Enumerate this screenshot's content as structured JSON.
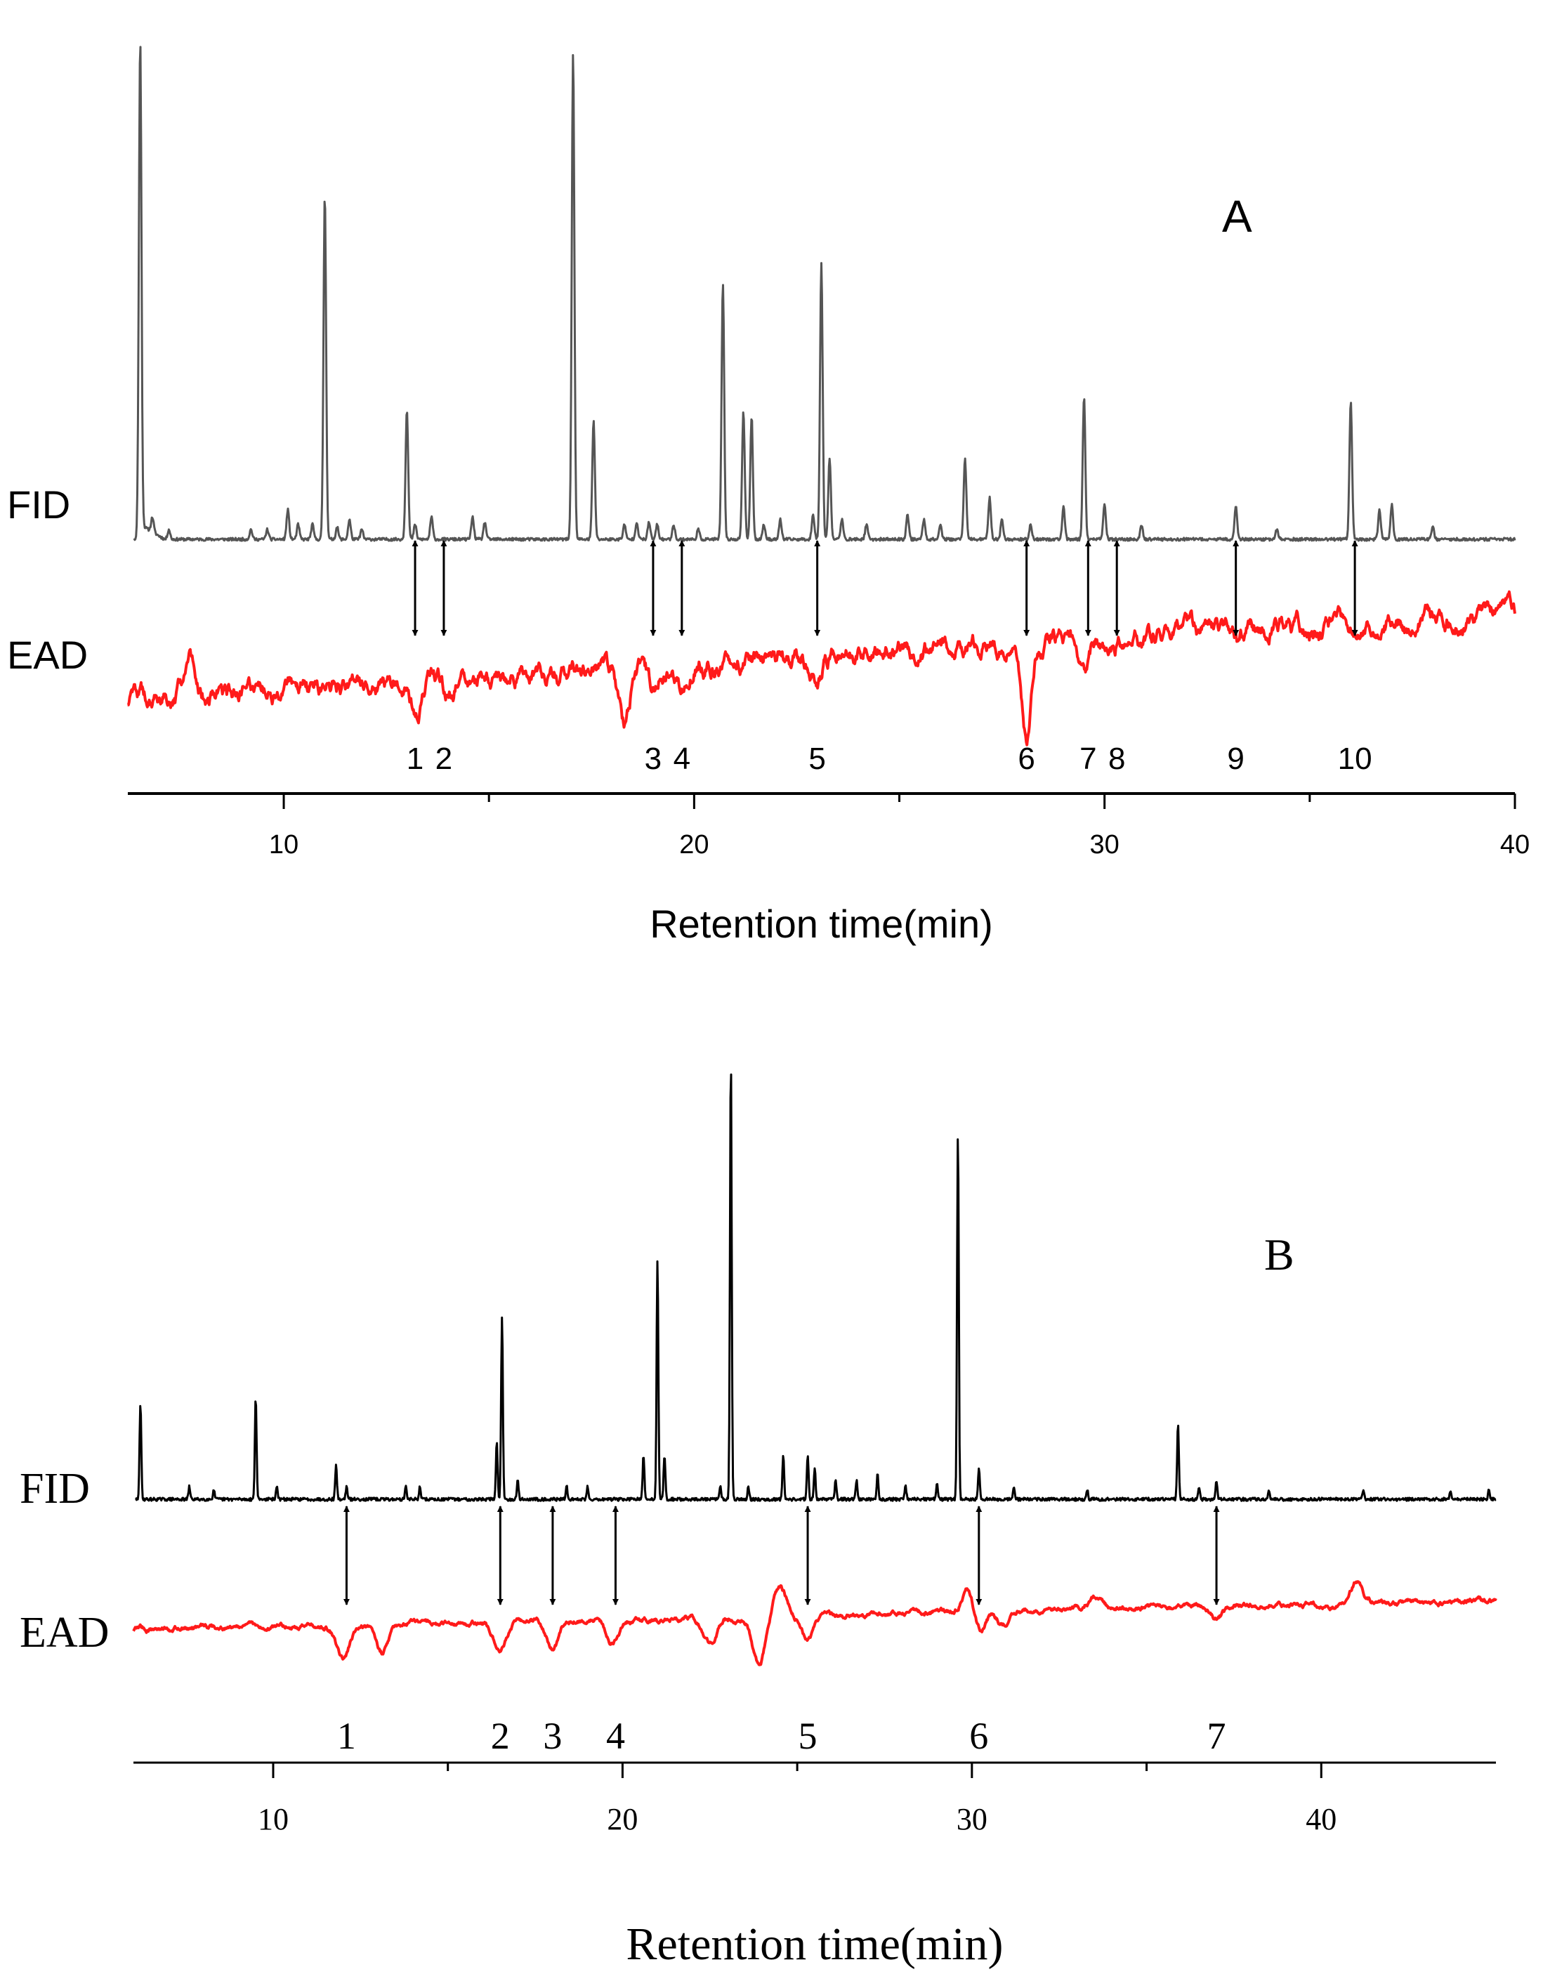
{
  "chart_data": [
    {
      "panel": "A",
      "type": "line",
      "panel_label": "A",
      "xlabel": "Retention time(min)",
      "xlim": [
        6.2,
        40
      ],
      "xticks_major": [
        10,
        20,
        30,
        40
      ],
      "xticks_minor": [
        15,
        25,
        35
      ],
      "series": [
        {
          "name": "FID",
          "color": "#555555",
          "baseline": 0,
          "noise": 0.6,
          "peaks": [
            [
              6.5,
              200
            ],
            [
              6.8,
              6
            ],
            [
              7.2,
              4
            ],
            [
              9.2,
              4
            ],
            [
              9.6,
              4
            ],
            [
              10.1,
              12
            ],
            [
              10.35,
              6
            ],
            [
              10.7,
              6
            ],
            [
              11.0,
              140
            ],
            [
              11.3,
              5
            ],
            [
              11.6,
              8
            ],
            [
              11.9,
              4
            ],
            [
              13.0,
              53
            ],
            [
              13.2,
              6
            ],
            [
              13.6,
              9
            ],
            [
              14.6,
              9
            ],
            [
              14.9,
              7
            ],
            [
              17.05,
              198
            ],
            [
              17.55,
              48
            ],
            [
              18.3,
              6
            ],
            [
              18.6,
              7
            ],
            [
              18.9,
              7
            ],
            [
              19.1,
              6
            ],
            [
              19.5,
              6
            ],
            [
              20.1,
              4
            ],
            [
              20.7,
              104
            ],
            [
              21.2,
              52
            ],
            [
              21.4,
              50
            ],
            [
              21.7,
              6
            ],
            [
              22.1,
              8
            ],
            [
              22.9,
              10
            ],
            [
              23.1,
              112
            ],
            [
              23.3,
              33
            ],
            [
              23.6,
              8
            ],
            [
              24.2,
              6
            ],
            [
              25.2,
              10
            ],
            [
              25.6,
              8
            ],
            [
              26.0,
              6
            ],
            [
              26.6,
              33
            ],
            [
              27.2,
              17
            ],
            [
              27.5,
              8
            ],
            [
              28.2,
              6
            ],
            [
              29.0,
              13
            ],
            [
              29.5,
              58
            ],
            [
              30.0,
              14
            ],
            [
              30.9,
              6
            ],
            [
              33.2,
              14
            ],
            [
              34.2,
              4
            ],
            [
              36.0,
              56
            ],
            [
              36.7,
              12
            ],
            [
              37.0,
              14
            ],
            [
              38.0,
              5
            ]
          ]
        },
        {
          "name": "EAD",
          "color": "#ff1a1a",
          "baseline": 0,
          "noise": 4,
          "peaks": [
            [
              7.7,
              20
            ],
            [
              13.2,
              -14
            ],
            [
              13.9,
              -5
            ],
            [
              18.3,
              -22
            ],
            [
              19.0,
              -9
            ],
            [
              19.7,
              -9
            ],
            [
              23.0,
              -7
            ],
            [
              28.1,
              -40
            ],
            [
              29.5,
              -9
            ],
            [
              30.1,
              -5
            ],
            [
              33.2,
              -3
            ],
            [
              36.1,
              -3
            ],
            [
              37.5,
              -7
            ]
          ]
        }
      ],
      "peak_labels": [
        {
          "label": "1",
          "x": 13.2
        },
        {
          "label": "2",
          "x": 13.9
        },
        {
          "label": "3",
          "x": 19.0
        },
        {
          "label": "4",
          "x": 19.7
        },
        {
          "label": "5",
          "x": 23.0
        },
        {
          "label": "6",
          "x": 28.1
        },
        {
          "label": "7",
          "x": 29.6
        },
        {
          "label": "8",
          "x": 30.3
        },
        {
          "label": "9",
          "x": 33.2
        },
        {
          "label": "10",
          "x": 36.1
        }
      ],
      "trace_labels": [
        "FID",
        "EAD"
      ],
      "trace_label_font": "sans"
    },
    {
      "panel": "B",
      "type": "line",
      "panel_label": "B",
      "xlabel": "Retention time(min)",
      "xlim": [
        6,
        45
      ],
      "xticks_major": [
        10,
        20,
        30,
        40
      ],
      "xticks_minor": [
        15,
        25,
        35
      ],
      "series": [
        {
          "name": "FID",
          "color": "#000000",
          "baseline": 0,
          "noise": 0.5,
          "peaks": [
            [
              6.2,
              30
            ],
            [
              7.6,
              4
            ],
            [
              8.3,
              3
            ],
            [
              9.5,
              32
            ],
            [
              10.1,
              4
            ],
            [
              11.8,
              11
            ],
            [
              12.1,
              4
            ],
            [
              13.8,
              4
            ],
            [
              14.2,
              4
            ],
            [
              16.4,
              18
            ],
            [
              16.55,
              58
            ],
            [
              17.0,
              6
            ],
            [
              18.4,
              4
            ],
            [
              19.0,
              4
            ],
            [
              20.6,
              14
            ],
            [
              21.0,
              76
            ],
            [
              21.2,
              14
            ],
            [
              22.8,
              4
            ],
            [
              23.1,
              140
            ],
            [
              23.6,
              4
            ],
            [
              24.6,
              14
            ],
            [
              25.3,
              14
            ],
            [
              25.5,
              10
            ],
            [
              26.1,
              6
            ],
            [
              26.7,
              6
            ],
            [
              27.3,
              8
            ],
            [
              28.1,
              4
            ],
            [
              29.0,
              5
            ],
            [
              29.6,
              116
            ],
            [
              30.2,
              10
            ],
            [
              31.2,
              4
            ],
            [
              33.3,
              3
            ],
            [
              35.9,
              24
            ],
            [
              36.5,
              4
            ],
            [
              37.0,
              6
            ],
            [
              38.5,
              3
            ],
            [
              41.2,
              3
            ],
            [
              43.7,
              3
            ],
            [
              44.8,
              3
            ]
          ]
        },
        {
          "name": "EAD",
          "color": "#ff1a1a",
          "baseline": 0,
          "noise": 1.2,
          "peaks": [
            [
              12.0,
              -14
            ],
            [
              13.1,
              -12
            ],
            [
              16.5,
              -11
            ],
            [
              18.0,
              -12
            ],
            [
              19.7,
              -9
            ],
            [
              22.5,
              -11
            ],
            [
              23.9,
              -20
            ],
            [
              24.5,
              12
            ],
            [
              25.3,
              -10
            ],
            [
              29.9,
              12
            ],
            [
              30.2,
              -10
            ],
            [
              30.9,
              -6
            ],
            [
              33.5,
              5
            ],
            [
              37.0,
              -5
            ],
            [
              41.0,
              9
            ]
          ]
        }
      ],
      "peak_labels": [
        {
          "label": "1",
          "x": 12.1
        },
        {
          "label": "2",
          "x": 16.5
        },
        {
          "label": "3",
          "x": 18.0
        },
        {
          "label": "4",
          "x": 19.8
        },
        {
          "label": "5",
          "x": 25.3
        },
        {
          "label": "6",
          "x": 30.2
        },
        {
          "label": "7",
          "x": 37.0
        }
      ],
      "trace_labels": [
        "FID",
        "EAD"
      ],
      "trace_label_font": "serif"
    }
  ]
}
